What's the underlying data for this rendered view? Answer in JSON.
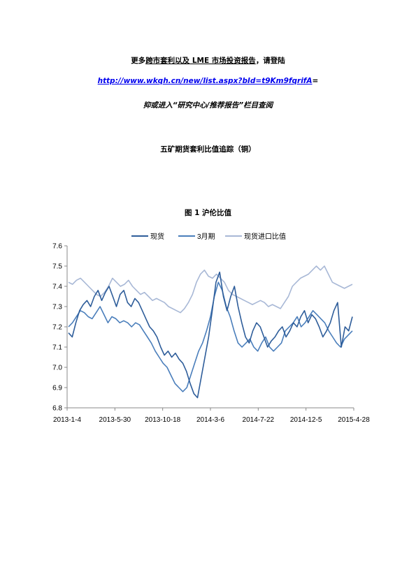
{
  "header": {
    "line1_part1": "更多",
    "line1_underlined": "跨市套利以及",
    "line1_part2": " LME 市场投资报告",
    "line1_part3": "，请登陆",
    "url": "http://www.wkqh.cn/new/list.aspx?bId=t9Km9fqrifA",
    "url_suffix": "=",
    "line3": "抑或进入“研究中心/推荐报告”栏目查阅",
    "section_title": "五矿期货套利比值追踪（铜）"
  },
  "chart_data": {
    "type": "line",
    "title": "图 1   沪伦比值",
    "xlabel": "",
    "ylabel": "",
    "ylim": [
      6.8,
      7.6
    ],
    "yticks": [
      "6.8",
      "6.9",
      "7.0",
      "7.1",
      "7.2",
      "7.3",
      "7.4",
      "7.5",
      "7.6"
    ],
    "x_tick_labels": [
      "2013-1-4",
      "2013-5-30",
      "2013-10-18",
      "2014-3-6",
      "2014-7-22",
      "2014-12-5",
      "2015-4-28"
    ],
    "legend_position": "top",
    "grid": false,
    "series": [
      {
        "name": "现货",
        "color": "#2e5d9a",
        "values": [
          7.17,
          7.15,
          7.22,
          7.28,
          7.31,
          7.33,
          7.3,
          7.35,
          7.38,
          7.33,
          7.37,
          7.4,
          7.35,
          7.3,
          7.36,
          7.38,
          7.32,
          7.3,
          7.34,
          7.32,
          7.28,
          7.24,
          7.2,
          7.18,
          7.15,
          7.1,
          7.06,
          7.08,
          7.05,
          7.07,
          7.04,
          7.02,
          6.98,
          6.92,
          6.87,
          6.85,
          6.95,
          7.05,
          7.15,
          7.28,
          7.42,
          7.47,
          7.35,
          7.28,
          7.35,
          7.4,
          7.3,
          7.22,
          7.15,
          7.12,
          7.18,
          7.22,
          7.2,
          7.15,
          7.1,
          7.13,
          7.15,
          7.18,
          7.2,
          7.15,
          7.18,
          7.22,
          7.2,
          7.25,
          7.28,
          7.22,
          7.26,
          7.24,
          7.2,
          7.15,
          7.18,
          7.22,
          7.28,
          7.32,
          7.1,
          7.2,
          7.18,
          7.25
        ]
      },
      {
        "name": "3月期",
        "color": "#4a7ebb",
        "values": [
          7.2,
          7.22,
          7.25,
          7.28,
          7.27,
          7.25,
          7.24,
          7.27,
          7.3,
          7.26,
          7.22,
          7.25,
          7.24,
          7.22,
          7.23,
          7.22,
          7.2,
          7.22,
          7.21,
          7.18,
          7.15,
          7.12,
          7.08,
          7.05,
          7.02,
          7.0,
          6.96,
          6.92,
          6.9,
          6.88,
          6.9,
          6.96,
          7.02,
          7.08,
          7.12,
          7.18,
          7.25,
          7.35,
          7.42,
          7.38,
          7.3,
          7.25,
          7.18,
          7.12,
          7.1,
          7.12,
          7.14,
          7.1,
          7.08,
          7.12,
          7.15,
          7.1,
          7.08,
          7.1,
          7.12,
          7.18,
          7.2,
          7.22,
          7.25,
          7.2,
          7.22,
          7.25,
          7.28,
          7.26,
          7.24,
          7.22,
          7.18,
          7.15,
          7.12,
          7.1,
          7.14,
          7.16,
          7.18
        ]
      },
      {
        "name": "现货进口比值",
        "color": "#a8b8d6",
        "values": [
          7.42,
          7.41,
          7.43,
          7.44,
          7.42,
          7.4,
          7.38,
          7.36,
          7.35,
          7.37,
          7.4,
          7.44,
          7.42,
          7.4,
          7.41,
          7.43,
          7.4,
          7.38,
          7.36,
          7.37,
          7.35,
          7.33,
          7.34,
          7.33,
          7.32,
          7.3,
          7.29,
          7.28,
          7.27,
          7.29,
          7.32,
          7.36,
          7.42,
          7.46,
          7.48,
          7.45,
          7.44,
          7.46,
          7.44,
          7.42,
          7.38,
          7.36,
          7.35,
          7.34,
          7.33,
          7.32,
          7.31,
          7.32,
          7.33,
          7.32,
          7.3,
          7.31,
          7.3,
          7.29,
          7.32,
          7.35,
          7.4,
          7.42,
          7.44,
          7.45,
          7.46,
          7.48,
          7.5,
          7.48,
          7.5,
          7.46,
          7.42,
          7.41,
          7.4,
          7.39,
          7.4,
          7.41
        ]
      }
    ]
  }
}
